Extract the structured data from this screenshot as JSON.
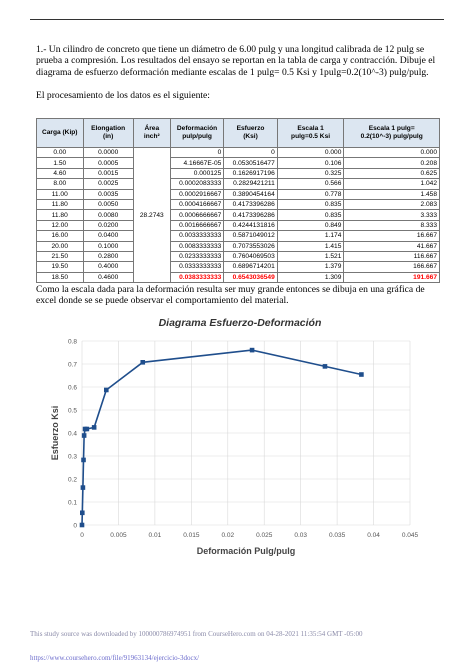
{
  "text": {
    "problem": "1.- Un cilindro de concreto que tiene un diámetro de 6.00 pulg y una longitud calibrada de 12 pulg se prueba a compresión. Los resultados del ensayo se reportan en la tabla de carga y contracción. Dibuje el diagrama de esfuerzo deformación mediante escalas de 1 pulg= 0.5 Ksi y 1pulg=0.2(10^-3) pulg/pulg.",
    "intro": "El procesamiento de los datos es el siguiente:",
    "comment": "Como la escala dada para la deformación resulta ser muy grande entonces se dibuja en una gráfica de excel donde se se puede observar el comportamiento del material."
  },
  "table": {
    "header": [
      "Carga (Kip)",
      "Elongation\n(in)",
      "Área\ninch²",
      "Deformación\npulp/pulg",
      "Esfuerzo\n(Ksi)",
      "Escala 1\npulg=0.5 Ksi",
      "Escala 1 pulg=\n0.2(10^-3) pulg/pulg"
    ],
    "area": "28.2743",
    "rows": [
      [
        "0.00",
        "0.0000",
        "0",
        "0",
        "0.000",
        "0.000"
      ],
      [
        "1.50",
        "0.0005",
        "4.16667E-05",
        "0.0530516477",
        "0.106",
        "0.208"
      ],
      [
        "4.60",
        "0.0015",
        "0.000125",
        "0.1626917196",
        "0.325",
        "0.625"
      ],
      [
        "8.00",
        "0.0025",
        "0.0002083333",
        "0.2829421211",
        "0.566",
        "1.042"
      ],
      [
        "11.00",
        "0.0035",
        "0.0002916667",
        "0.3890454164",
        "0.778",
        "1.458"
      ],
      [
        "11.80",
        "0.0050",
        "0.0004166667",
        "0.4173396286",
        "0.835",
        "2.083"
      ],
      [
        "11.80",
        "0.0080",
        "0.0006666667",
        "0.4173396286",
        "0.835",
        "3.333"
      ],
      [
        "12.00",
        "0.0200",
        "0.0016666667",
        "0.4244131816",
        "0.849",
        "8.333"
      ],
      [
        "16.00",
        "0.0400",
        "0.0033333333",
        "0.5871049012",
        "1.174",
        "16.667"
      ],
      [
        "20.00",
        "0.1000",
        "0.0083333333",
        "0.7073553026",
        "1.415",
        "41.667"
      ],
      [
        "21.50",
        "0.2800",
        "0.0233333333",
        "0.7604069503",
        "1.521",
        "116.667"
      ],
      [
        "19.50",
        "0.4000",
        "0.0333333333",
        "0.6896714201",
        "1.379",
        "166.667"
      ],
      [
        "18.50",
        "0.4600",
        "0.0383333333",
        "0.6543036549",
        "1.309",
        "191.667"
      ]
    ],
    "highlight": {
      "row": 12,
      "columns": [
        2,
        3,
        5
      ],
      "color": "#ff0000"
    }
  },
  "chart_data": {
    "type": "line",
    "title": "Diagrama Esfuerzo-Deformación",
    "x_label": "Deformación Pulg/pulg",
    "y_label": "Esfuerzo Ksi",
    "x": [
      0,
      4.16667e-05,
      0.000125,
      0.0002083333,
      0.0002916667,
      0.0004166667,
      0.0006666667,
      0.0016666667,
      0.0033333333,
      0.0083333333,
      0.0233333333,
      0.0333333333,
      0.0383333333
    ],
    "series": [
      {
        "name": "Esfuerzo",
        "color": "#1f4e8c",
        "values": [
          0,
          0.0530516477,
          0.1626917196,
          0.2829421211,
          0.3890454164,
          0.4173396286,
          0.4173396286,
          0.4244131816,
          0.5871049012,
          0.7073553026,
          0.7604069503,
          0.6896714201,
          0.6543036549
        ]
      }
    ],
    "xlim": [
      0,
      0.045
    ],
    "xticks": [
      0,
      0.005,
      0.01,
      0.015,
      0.02,
      0.025,
      0.03,
      0.035,
      0.04,
      0.045
    ],
    "ylim": [
      0,
      0.8
    ],
    "yticks": [
      0,
      0.1,
      0.2,
      0.3,
      0.4,
      0.5,
      0.6,
      0.7,
      0.8
    ],
    "grid": true
  },
  "footer": {
    "notice": "This study source was downloaded by 100000786974951 from CourseHero.com on 04-28-2021 11:35:54 GMT -05:00",
    "url": "https://www.coursehero.com/file/91963134/ejercicio-3docx/"
  }
}
